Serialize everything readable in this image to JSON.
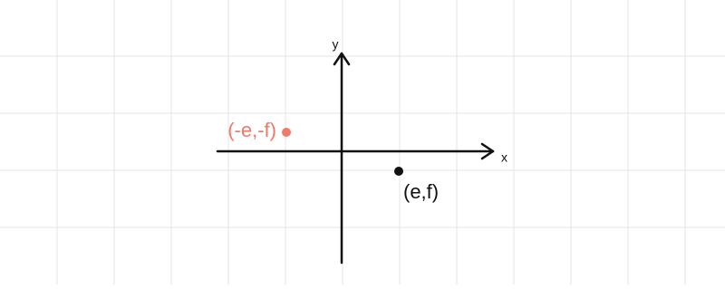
{
  "axes": {
    "x_label": "x",
    "y_label": "y"
  },
  "points": [
    {
      "label": "(-e,-f)",
      "color": "#f07a6a"
    },
    {
      "label": "(e,f)",
      "color": "#111111"
    }
  ]
}
